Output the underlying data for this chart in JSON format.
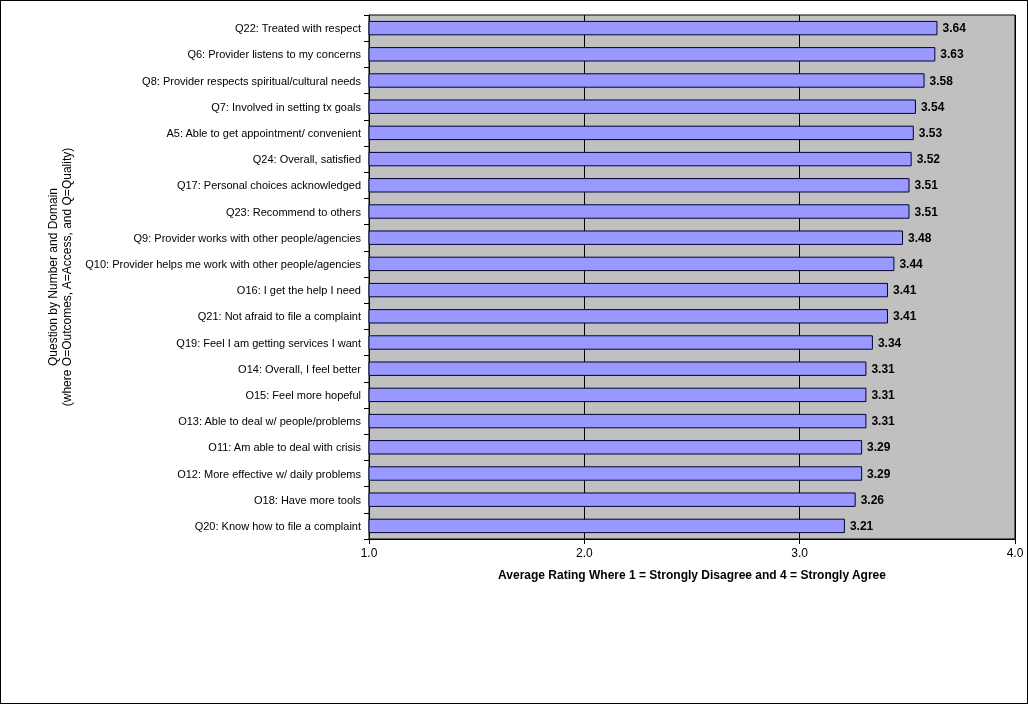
{
  "chart_data": {
    "type": "bar",
    "orientation": "horizontal",
    "xlabel": "Average Rating Where 1 = Strongly Disagree and 4 = Strongly Agree",
    "ylabel": "Question by Number and Domain\n(where O=Outcomes, A=Access, and Q=Quality)",
    "categories": [
      "Q22: Treated with respect",
      "Q6: Provider listens to my concerns",
      "Q8: Provider respects spiritual/cultural needs",
      "Q7: Involved in setting tx goals",
      "A5: Able to get appointment/ convenient",
      "Q24: Overall, satisfied",
      "Q17: Personal choices acknowledged",
      "Q23: Recommend to others",
      "Q9: Provider works with other people/agencies",
      "Q10: Provider helps me work with other people/agencies",
      "O16: I get the help I need",
      "Q21: Not afraid to file a complaint",
      "Q19: Feel I am getting services I want",
      "O14: Overall, I feel better",
      "O15: Feel more hopeful",
      "O13: Able to deal w/ people/problems",
      "O11: Am able to deal with crisis",
      "O12: More effective w/ daily problems",
      "O18: Have more tools",
      "Q20: Know how to file a complaint"
    ],
    "values": [
      3.64,
      3.63,
      3.58,
      3.54,
      3.53,
      3.52,
      3.51,
      3.51,
      3.48,
      3.44,
      3.41,
      3.41,
      3.34,
      3.31,
      3.31,
      3.31,
      3.29,
      3.29,
      3.26,
      3.21
    ],
    "color": "#9999ff",
    "xlim": [
      1,
      4
    ],
    "xticks": [
      {
        "value": 1,
        "label": "1.0"
      },
      {
        "value": 2,
        "label": "2.0"
      },
      {
        "value": 3,
        "label": "3.0"
      },
      {
        "value": 4,
        "label": "4.0"
      }
    ],
    "grid": "x",
    "data_labels": true
  }
}
